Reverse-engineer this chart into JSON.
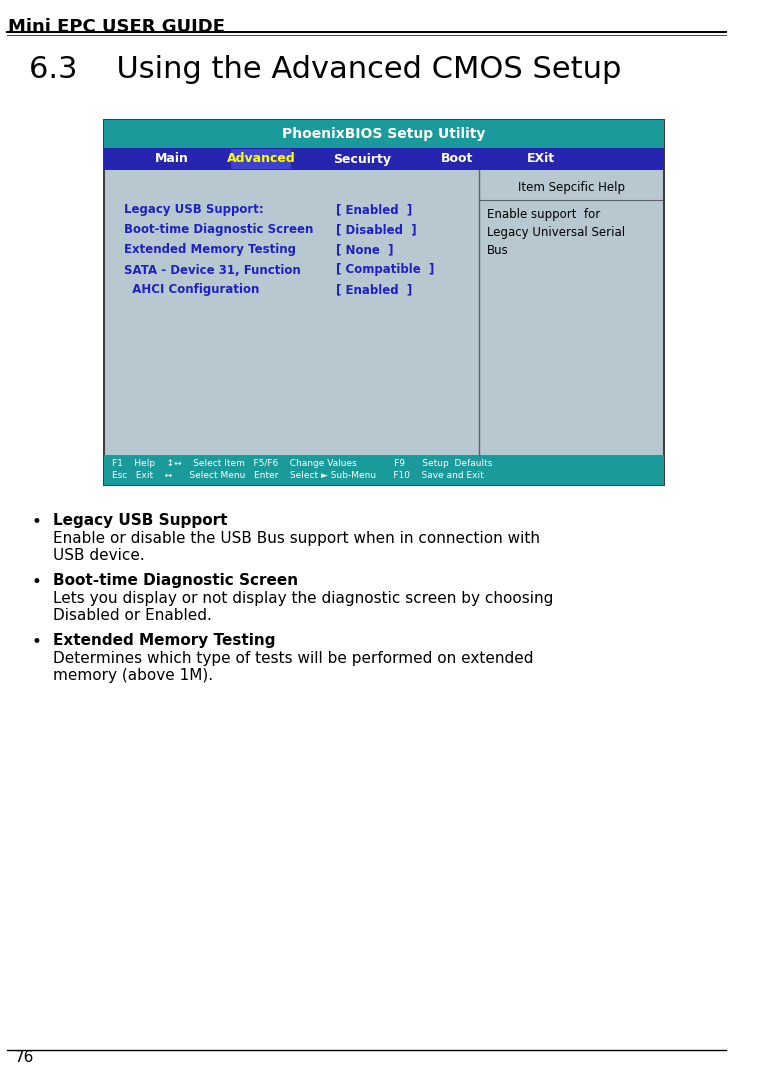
{
  "header_title": "Mini EPC USER GUIDE",
  "section_title": "6.3    Using the Advanced CMOS Setup",
  "page_number": "76",
  "bios_title": "PhoenixBIOS Setup Utility",
  "menu_items": [
    "Main",
    "Advanced",
    "Secuirty",
    "Boot",
    "EXit"
  ],
  "menu_active": "Advanced",
  "bios_rows": [
    {
      "label": "Legacy USB Support:",
      "value": "[ Enabled  ]"
    },
    {
      "label": "Boot-time Diagnostic Screen",
      "value": "[ Disabled  ]"
    },
    {
      "label": "Extended Memory Testing",
      "value": "[ None  ]"
    },
    {
      "label": "SATA - Device 31, Function",
      "value": "[ Compatible  ]"
    },
    {
      "label": "  AHCI Configuration",
      "value": "[ Enabled  ]"
    }
  ],
  "help_title": "Item Sepcific Help",
  "help_text": "Enable support  for\nLegacy Universal Serial\nBus",
  "footer_left": "F1    Help    ↕↔    Select Item   F5/F6    Change Values             F9      Setup  Defaults",
  "footer_right": "Esc   Exit    ↔      Select Menu   Enter    Select ► Sub-Menu      F10    Save and Exit",
  "bullet_items": [
    {
      "title": "Legacy USB Support",
      "body": "Enable or disable the USB Bus support when in connection with\nUSB device."
    },
    {
      "title": "Boot-time Diagnostic Screen",
      "body": "Lets you display or not display the diagnostic screen by choosing\nDisabled or Enabled."
    },
    {
      "title": "Extended Memory Testing",
      "body": "Determines which type of tests will be performed on extended\nmemory (above 1M)."
    }
  ],
  "color_teal_header": "#1a9a9a",
  "color_blue_menu": "#2020c0",
  "color_blue_active": "#3030d0",
  "color_bios_bg": "#b8c8d0",
  "color_bios_text": "#2020c0",
  "color_bios_help_text": "#000000",
  "color_footer_bg": "#1a9a9a",
  "color_footer_text": "#ffffff",
  "color_border": "#606060"
}
